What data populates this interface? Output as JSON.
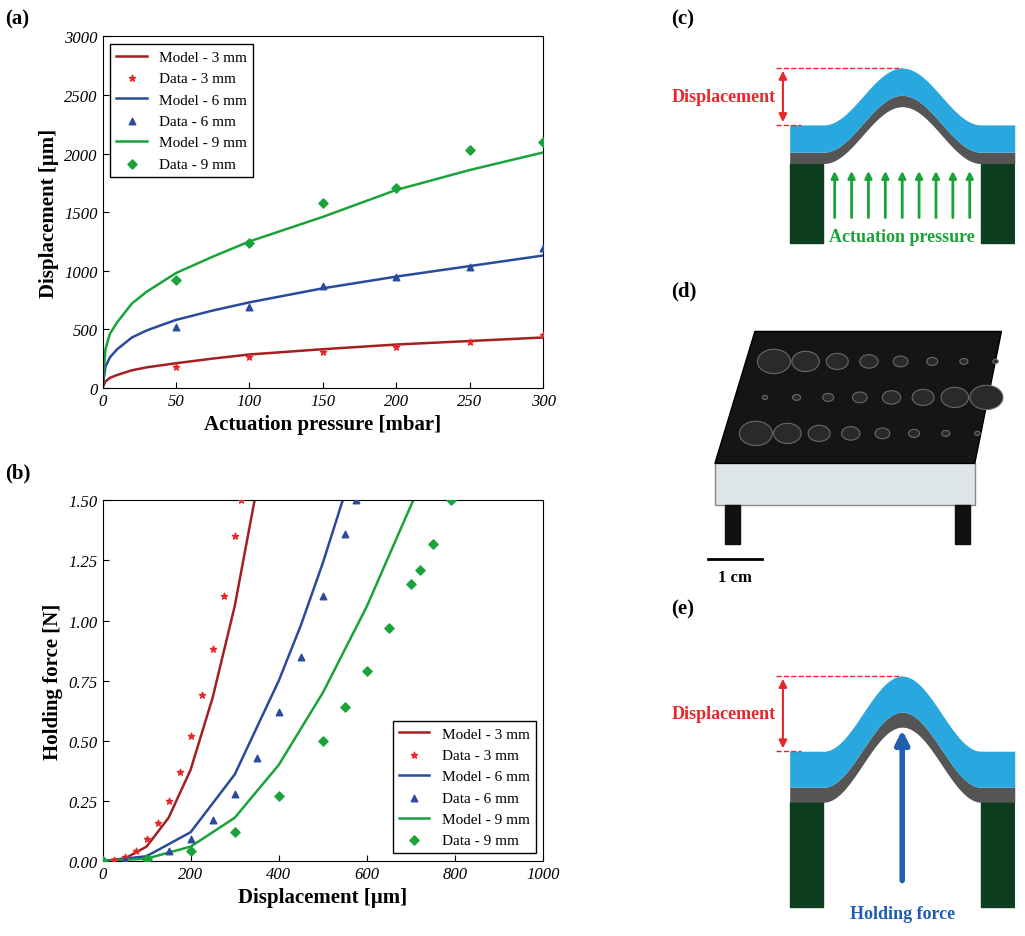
{
  "panels": {
    "a": "(a)",
    "b": "(b)",
    "c": "(c)",
    "d": "(d)",
    "e": "(e)"
  },
  "chart_data": [
    {
      "type": "line",
      "x_label": "Actuation pressure [mbar]",
      "y_label": "Displacement [μm]",
      "xlim": [
        0,
        300
      ],
      "xticks": [
        0,
        50,
        100,
        150,
        200,
        250,
        300
      ],
      "ylim": [
        0,
        3000
      ],
      "yticks": [
        0,
        500,
        1000,
        1500,
        2000,
        2500,
        3000
      ],
      "legend": "upper left",
      "grid": false,
      "series": [
        {
          "name": "Model - 3 mm",
          "type": "line",
          "color": "#a32020",
          "line_style": "solid",
          "x": [
            0,
            2,
            5,
            10,
            20,
            30,
            50,
            75,
            100,
            150,
            200,
            250,
            300
          ],
          "values": [
            0,
            55,
            85,
            110,
            150,
            175,
            210,
            250,
            285,
            330,
            370,
            400,
            430
          ]
        },
        {
          "name": "Data - 3 mm",
          "type": "scatter",
          "color": "#e8262a",
          "marker": "star",
          "x": [
            50,
            100,
            150,
            200,
            250,
            300
          ],
          "values": [
            175,
            260,
            310,
            345,
            395,
            450
          ]
        },
        {
          "name": "Model - 6 mm",
          "type": "line",
          "color": "#2a4a9b",
          "line_style": "solid",
          "x": [
            0,
            2,
            5,
            10,
            20,
            30,
            50,
            75,
            100,
            150,
            200,
            250,
            300
          ],
          "values": [
            0,
            180,
            260,
            330,
            430,
            490,
            580,
            660,
            730,
            850,
            950,
            1040,
            1130
          ]
        },
        {
          "name": "Data - 6 mm",
          "type": "scatter",
          "color": "#2a4a9b",
          "marker": "triangle",
          "x": [
            50,
            100,
            150,
            200,
            250,
            300
          ],
          "values": [
            520,
            690,
            870,
            945,
            1035,
            1190
          ]
        },
        {
          "name": "Model - 9 mm",
          "type": "line",
          "color": "#1aa33a",
          "line_style": "solid",
          "x": [
            0,
            2,
            5,
            10,
            20,
            30,
            50,
            75,
            100,
            150,
            200,
            250,
            300
          ],
          "values": [
            0,
            330,
            460,
            560,
            720,
            820,
            980,
            1120,
            1250,
            1460,
            1690,
            1860,
            2010
          ]
        },
        {
          "name": "Data - 9 mm",
          "type": "scatter",
          "color": "#1aa33a",
          "marker": "diamond",
          "x": [
            50,
            100,
            150,
            200,
            250,
            300
          ],
          "values": [
            920,
            1235,
            1575,
            1705,
            2030,
            2100
          ]
        }
      ]
    },
    {
      "type": "line",
      "x_label": "Displacement [μm]",
      "y_label": "Holding force [N]",
      "xlim": [
        0,
        1000
      ],
      "xticks": [
        0,
        200,
        400,
        600,
        800,
        1000
      ],
      "ylim": [
        0,
        1.5
      ],
      "yticks": [
        {
          "value": 0,
          "label": "0.00"
        },
        0.25,
        {
          "value": 0.5,
          "label": "0.50"
        },
        0.75,
        {
          "value": 1,
          "label": "1.00"
        },
        1.25,
        {
          "value": 1.5,
          "label": "1.50"
        }
      ],
      "legend": "lower right",
      "grid": false,
      "series": [
        {
          "name": "Model - 3 mm",
          "type": "line",
          "color": "#a32020",
          "line_style": "solid",
          "x": [
            0,
            50,
            100,
            150,
            200,
            250,
            300,
            345
          ],
          "values": [
            0,
            0.01,
            0.06,
            0.18,
            0.38,
            0.68,
            1.06,
            1.5
          ]
        },
        {
          "name": "Data - 3 mm",
          "type": "scatter",
          "color": "#e8262a",
          "marker": "star",
          "x": [
            0,
            25,
            50,
            75,
            100,
            125,
            150,
            175,
            200,
            225,
            250,
            275,
            300,
            315
          ],
          "values": [
            0,
            0.003,
            0.015,
            0.04,
            0.09,
            0.16,
            0.25,
            0.37,
            0.52,
            0.69,
            0.88,
            1.1,
            1.35,
            1.5
          ]
        },
        {
          "name": "Model - 6 mm",
          "type": "line",
          "color": "#2a4a9b",
          "line_style": "solid",
          "x": [
            0,
            100,
            200,
            300,
            400,
            450,
            500,
            545
          ],
          "values": [
            0,
            0.02,
            0.12,
            0.36,
            0.75,
            0.98,
            1.24,
            1.5
          ]
        },
        {
          "name": "Data - 6 mm",
          "type": "scatter",
          "color": "#2a4a9b",
          "marker": "triangle",
          "x": [
            0,
            50,
            100,
            150,
            200,
            250,
            300,
            350,
            400,
            450,
            500,
            550,
            575
          ],
          "values": [
            0,
            0.003,
            0.015,
            0.04,
            0.09,
            0.17,
            0.28,
            0.43,
            0.62,
            0.85,
            1.1,
            1.36,
            1.5
          ]
        },
        {
          "name": "Model - 9 mm",
          "type": "line",
          "color": "#1aa33a",
          "line_style": "solid",
          "x": [
            0,
            100,
            200,
            300,
            400,
            500,
            600,
            650,
            705
          ],
          "values": [
            0,
            0.01,
            0.06,
            0.18,
            0.4,
            0.7,
            1.06,
            1.27,
            1.5
          ]
        },
        {
          "name": "Data - 9 mm",
          "type": "scatter",
          "color": "#1aa33a",
          "marker": "diamond",
          "x": [
            0,
            100,
            200,
            300,
            400,
            500,
            550,
            600,
            650,
            700,
            720,
            750,
            790
          ],
          "values": [
            0,
            0.01,
            0.04,
            0.12,
            0.27,
            0.5,
            0.64,
            0.79,
            0.97,
            1.15,
            1.21,
            1.32,
            1.5
          ]
        }
      ]
    }
  ],
  "diagrams": {
    "c": {
      "displacement": "Displacement",
      "pressure": "Actuation pressure"
    },
    "d": {
      "scale_bar": "1 cm"
    },
    "e": {
      "displacement": "Displacement",
      "force": "Holding force"
    }
  }
}
